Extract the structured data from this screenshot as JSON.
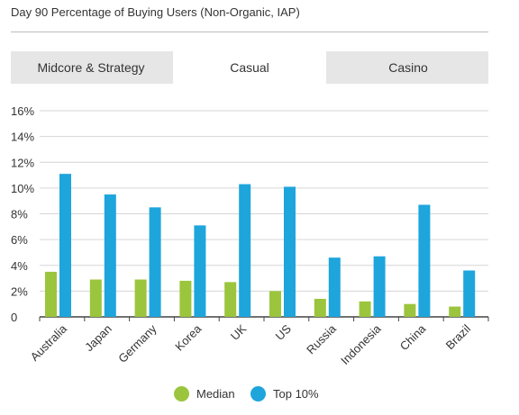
{
  "title": "Day 90 Percentage of Buying Users (Non-Organic, IAP)",
  "tabs": [
    {
      "label": "Midcore & Strategy",
      "active": false
    },
    {
      "label": "Casual",
      "active": true
    },
    {
      "label": "Casino",
      "active": false
    }
  ],
  "colors": {
    "median": "#9bc53d",
    "top10": "#1ea5dc"
  },
  "chart_data": {
    "type": "bar",
    "title": "",
    "categories": [
      "Australia",
      "Japan",
      "Germany",
      "Korea",
      "UK",
      "US",
      "Russia",
      "Indonesia",
      "China",
      "Brazil"
    ],
    "series": [
      {
        "name": "Median",
        "values": [
          3.5,
          2.9,
          2.9,
          2.8,
          2.7,
          2.0,
          1.4,
          1.2,
          1.0,
          0.8
        ]
      },
      {
        "name": "Top 10%",
        "values": [
          11.1,
          9.5,
          8.5,
          7.1,
          10.3,
          10.1,
          4.6,
          4.7,
          8.7,
          3.6
        ]
      }
    ],
    "yticks": [
      "0",
      "2%",
      "4%",
      "6%",
      "8%",
      "10%",
      "12%",
      "14%",
      "16%"
    ],
    "ylim": [
      0,
      16
    ],
    "grid": true,
    "legend_position": "bottom-center"
  }
}
